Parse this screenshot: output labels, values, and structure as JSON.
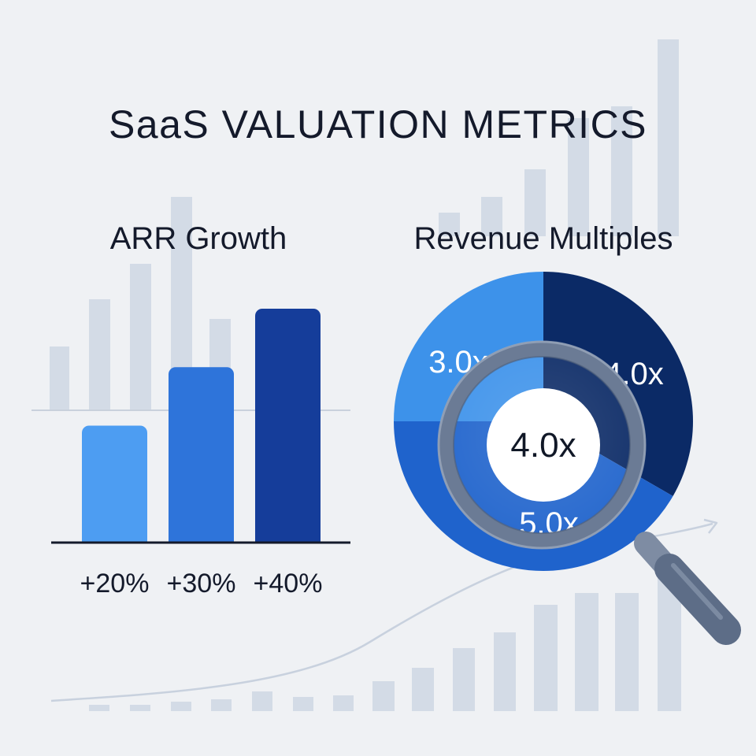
{
  "title": "SaaS VALUATION METRICS",
  "colors": {
    "background": "#eff1f4",
    "text": "#141a2b",
    "ghost_bars": "#d3dbe6",
    "bar_light": "#4d9df2",
    "bar_mid": "#2e74da",
    "bar_dark": "#153d9a",
    "slice_light": "#3d92ea",
    "slice_mid": "#1f63cc",
    "slice_dark": "#0b2a66",
    "magnifier_frame": "#6b7b95",
    "magnifier_handle": "#5d6d87"
  },
  "magnifier": {
    "icon": "magnifying-glass-icon"
  },
  "chart_data": [
    {
      "type": "bar",
      "title": "ARR Growth",
      "categories": [
        "+20%",
        "+30%",
        "+40%"
      ],
      "values": [
        20,
        30,
        40
      ],
      "ylim": [
        0,
        47
      ],
      "xlabel": "",
      "ylabel": "",
      "grid": false
    },
    {
      "type": "pie",
      "title": "Revenue Multiples",
      "labels": [
        "3.0x",
        "4.0x",
        "5.0x"
      ],
      "values": [
        3.0,
        4.0,
        5.0
      ],
      "center_label": "4.0x",
      "donut": true
    }
  ]
}
